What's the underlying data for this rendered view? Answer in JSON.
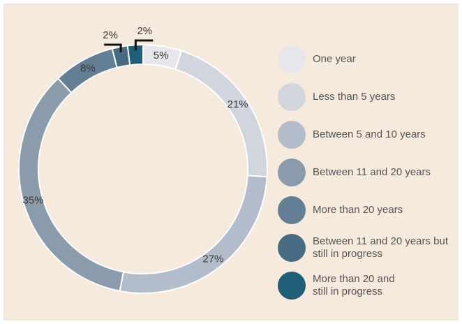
{
  "chart_data": {
    "type": "donut",
    "categories": [
      "One year",
      "Less than 5 years",
      "Between 5 and 10 years",
      "Between 11 and 20 years",
      "More than 20 years",
      "Between 11 and 20 years but still in progress",
      "More than 20 and still in progress"
    ],
    "values": [
      5,
      21,
      27,
      35,
      8,
      2,
      2
    ],
    "value_labels": [
      "5%",
      "21%",
      "27%",
      "35%",
      "8%",
      "2%",
      "2%"
    ],
    "colors": [
      "#e6e7ec",
      "#d0d5de",
      "#b3bccb",
      "#8a9bac",
      "#637f96",
      "#466b82",
      "#1f5f78"
    ]
  }
}
